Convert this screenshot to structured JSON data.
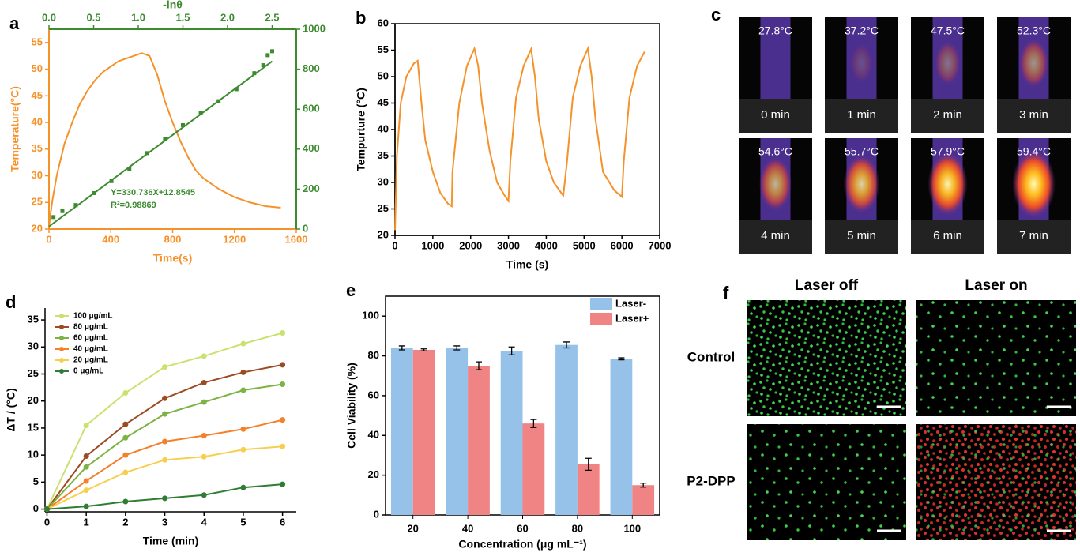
{
  "chart_data": [
    {
      "type": "line",
      "label": "a",
      "xlabel": "Time(s)",
      "ylabel": "Temperature(°C)",
      "x2label": "-lnθ",
      "xlim": [
        0,
        1600
      ],
      "xticks": [
        0,
        400,
        800,
        1200,
        1600
      ],
      "ylim": [
        20,
        57.5
      ],
      "yticks": [
        20,
        25,
        30,
        35,
        40,
        45,
        50,
        55
      ],
      "x2lim": [
        0,
        2.77
      ],
      "x2ticks": [
        {
          "value": 0,
          "label": "0.0"
        },
        0.5,
        {
          "value": 1,
          "label": "1.0"
        },
        1.5,
        {
          "value": 2,
          "label": "2.0"
        },
        2.5
      ],
      "y2lim": [
        0,
        1000
      ],
      "y2ticks": [
        0,
        200,
        400,
        600,
        800,
        1000
      ],
      "annotations": [
        "Y=330.736X+12.8545",
        "R²=0.98869"
      ],
      "series": [
        {
          "color": "#f5922a",
          "style": "line",
          "x": [
            0,
            20,
            50,
            100,
            150,
            200,
            250,
            300,
            350,
            400,
            450,
            500,
            550,
            600,
            650,
            700,
            750,
            800,
            850,
            900,
            950,
            1000,
            1100,
            1200,
            1300,
            1400,
            1500
          ],
          "values": [
            20.5,
            25,
            30,
            36,
            40,
            43.5,
            46,
            48,
            49.5,
            50.5,
            51.5,
            52,
            52.5,
            53,
            52.5,
            49,
            44,
            40,
            36.5,
            33.5,
            31,
            29.5,
            27.5,
            26,
            25,
            24.3,
            24
          ]
        },
        {
          "color": "#3d8b2f",
          "style": "markers",
          "axis": "y2",
          "x_axis": "x2",
          "x": [
            0.05,
            0.15,
            0.3,
            0.5,
            0.7,
            0.9,
            1.1,
            1.3,
            1.5,
            1.7,
            1.9,
            2.1,
            2.3,
            2.4,
            2.45,
            2.5
          ],
          "values": [
            60,
            90,
            120,
            180,
            240,
            300,
            380,
            450,
            520,
            580,
            640,
            700,
            780,
            820,
            870,
            890
          ]
        },
        {
          "color": "#3d8b2f",
          "style": "line",
          "axis": "y2",
          "x_axis": "x2",
          "x": [
            0,
            2.5
          ],
          "values": [
            12.8545,
            839.69
          ]
        }
      ]
    },
    {
      "type": "line",
      "label": "b",
      "xlabel": "Time (s)",
      "ylabel": "Tempurture (°C)",
      "xlim": [
        0,
        7000
      ],
      "xticks": [
        0,
        1000,
        2000,
        3000,
        4000,
        5000,
        6000,
        7000
      ],
      "ylim": [
        20,
        60
      ],
      "yticks": [
        20,
        25,
        30,
        35,
        40,
        45,
        50,
        55,
        60
      ],
      "series": [
        {
          "color": "#f5922a",
          "style": "line",
          "x": [
            0,
            50,
            150,
            300,
            500,
            600,
            700,
            800,
            1000,
            1200,
            1400,
            1500,
            1520,
            1700,
            1900,
            2100,
            2200,
            2300,
            2500,
            2700,
            2900,
            3000,
            3050,
            3200,
            3400,
            3600,
            3700,
            3800,
            4000,
            4200,
            4450,
            4550,
            4700,
            4900,
            5100,
            5200,
            5300,
            5500,
            5800,
            6000,
            6050,
            6200,
            6400,
            6600
          ],
          "values": [
            21,
            35,
            45,
            50,
            52.5,
            53,
            45,
            38,
            32,
            28,
            26,
            25.5,
            32,
            45,
            52,
            55.3,
            52,
            45,
            36,
            30,
            27.5,
            26.5,
            34,
            46,
            52,
            55.2,
            50,
            42,
            34,
            30,
            27.5,
            34,
            46,
            52,
            55.3,
            50,
            42,
            32,
            28.5,
            27.3,
            34,
            46,
            52,
            54.7
          ]
        }
      ]
    },
    {
      "type": "line",
      "label": "d",
      "xlabel": "Time (min)",
      "ylabel": "ΔT / (°C)",
      "xlim": [
        -0.05,
        6.35
      ],
      "xticks": [
        0,
        1,
        2,
        3,
        4,
        5,
        6
      ],
      "ylim": [
        -0.5,
        37.2
      ],
      "yticks": [
        0,
        5,
        10,
        15,
        20,
        25,
        30,
        35
      ],
      "x": [
        0,
        1,
        2,
        3,
        4,
        5,
        6
      ],
      "series": [
        {
          "name": "100 μg/mL",
          "color": "#c9e26d",
          "values": [
            0,
            15.5,
            21.5,
            26.3,
            28.3,
            30.6,
            32.6
          ]
        },
        {
          "name": "80 μg/mL",
          "color": "#9c4a22",
          "values": [
            0,
            9.8,
            15.7,
            20.5,
            23.4,
            25.3,
            26.7
          ]
        },
        {
          "name": "60 μg/mL",
          "color": "#7cb342",
          "values": [
            0,
            7.8,
            13.2,
            17.6,
            19.8,
            22,
            23.1
          ]
        },
        {
          "name": "40 μg/mL",
          "color": "#f5802a",
          "values": [
            0,
            5.2,
            10,
            12.5,
            13.6,
            14.8,
            16.5
          ]
        },
        {
          "name": "20 μg/mL",
          "color": "#f7cf50",
          "values": [
            0,
            3.5,
            6.8,
            9.1,
            9.7,
            11,
            11.6
          ]
        },
        {
          "name": "0 μg/mL",
          "color": "#2e7d32",
          "values": [
            0,
            0.5,
            1.4,
            2,
            2.6,
            4,
            4.6
          ]
        }
      ]
    },
    {
      "type": "bar",
      "label": "e",
      "xlabel": "Concentration (μg mL⁻¹)",
      "ylabel": "Cell Viability (%)",
      "categories": [
        "20",
        "40",
        "60",
        "80",
        "100"
      ],
      "ylim": [
        0,
        110
      ],
      "yticks": [
        0,
        20,
        40,
        60,
        80,
        100
      ],
      "legend": "top-right",
      "series": [
        {
          "name": "Laser-",
          "color": "#96c1e8",
          "values": [
            84,
            84,
            82.5,
            85.5,
            78.5
          ],
          "errors": [
            1,
            1,
            2,
            1.5,
            0.5
          ]
        },
        {
          "name": "Laser+",
          "color": "#f08484",
          "values": [
            83,
            75,
            46,
            25.5,
            15
          ],
          "errors": [
            0.5,
            2,
            2,
            3,
            1
          ]
        }
      ]
    }
  ],
  "thermal_images": {
    "label": "c",
    "temperatures": [
      "27.8°C",
      "37.2°C",
      "47.5°C",
      "52.3°C",
      "54.6°C",
      "55.7°C",
      "57.9°C",
      "59.4°C"
    ],
    "times": [
      "0 min",
      "1 min",
      "2 min",
      "3 min",
      "4 min",
      "5 min",
      "6 min",
      "7 min"
    ]
  },
  "fluorescence": {
    "label": "f",
    "columns": [
      "Laser off",
      "Laser on"
    ],
    "rows": [
      "Control",
      "P2-DPP"
    ]
  }
}
